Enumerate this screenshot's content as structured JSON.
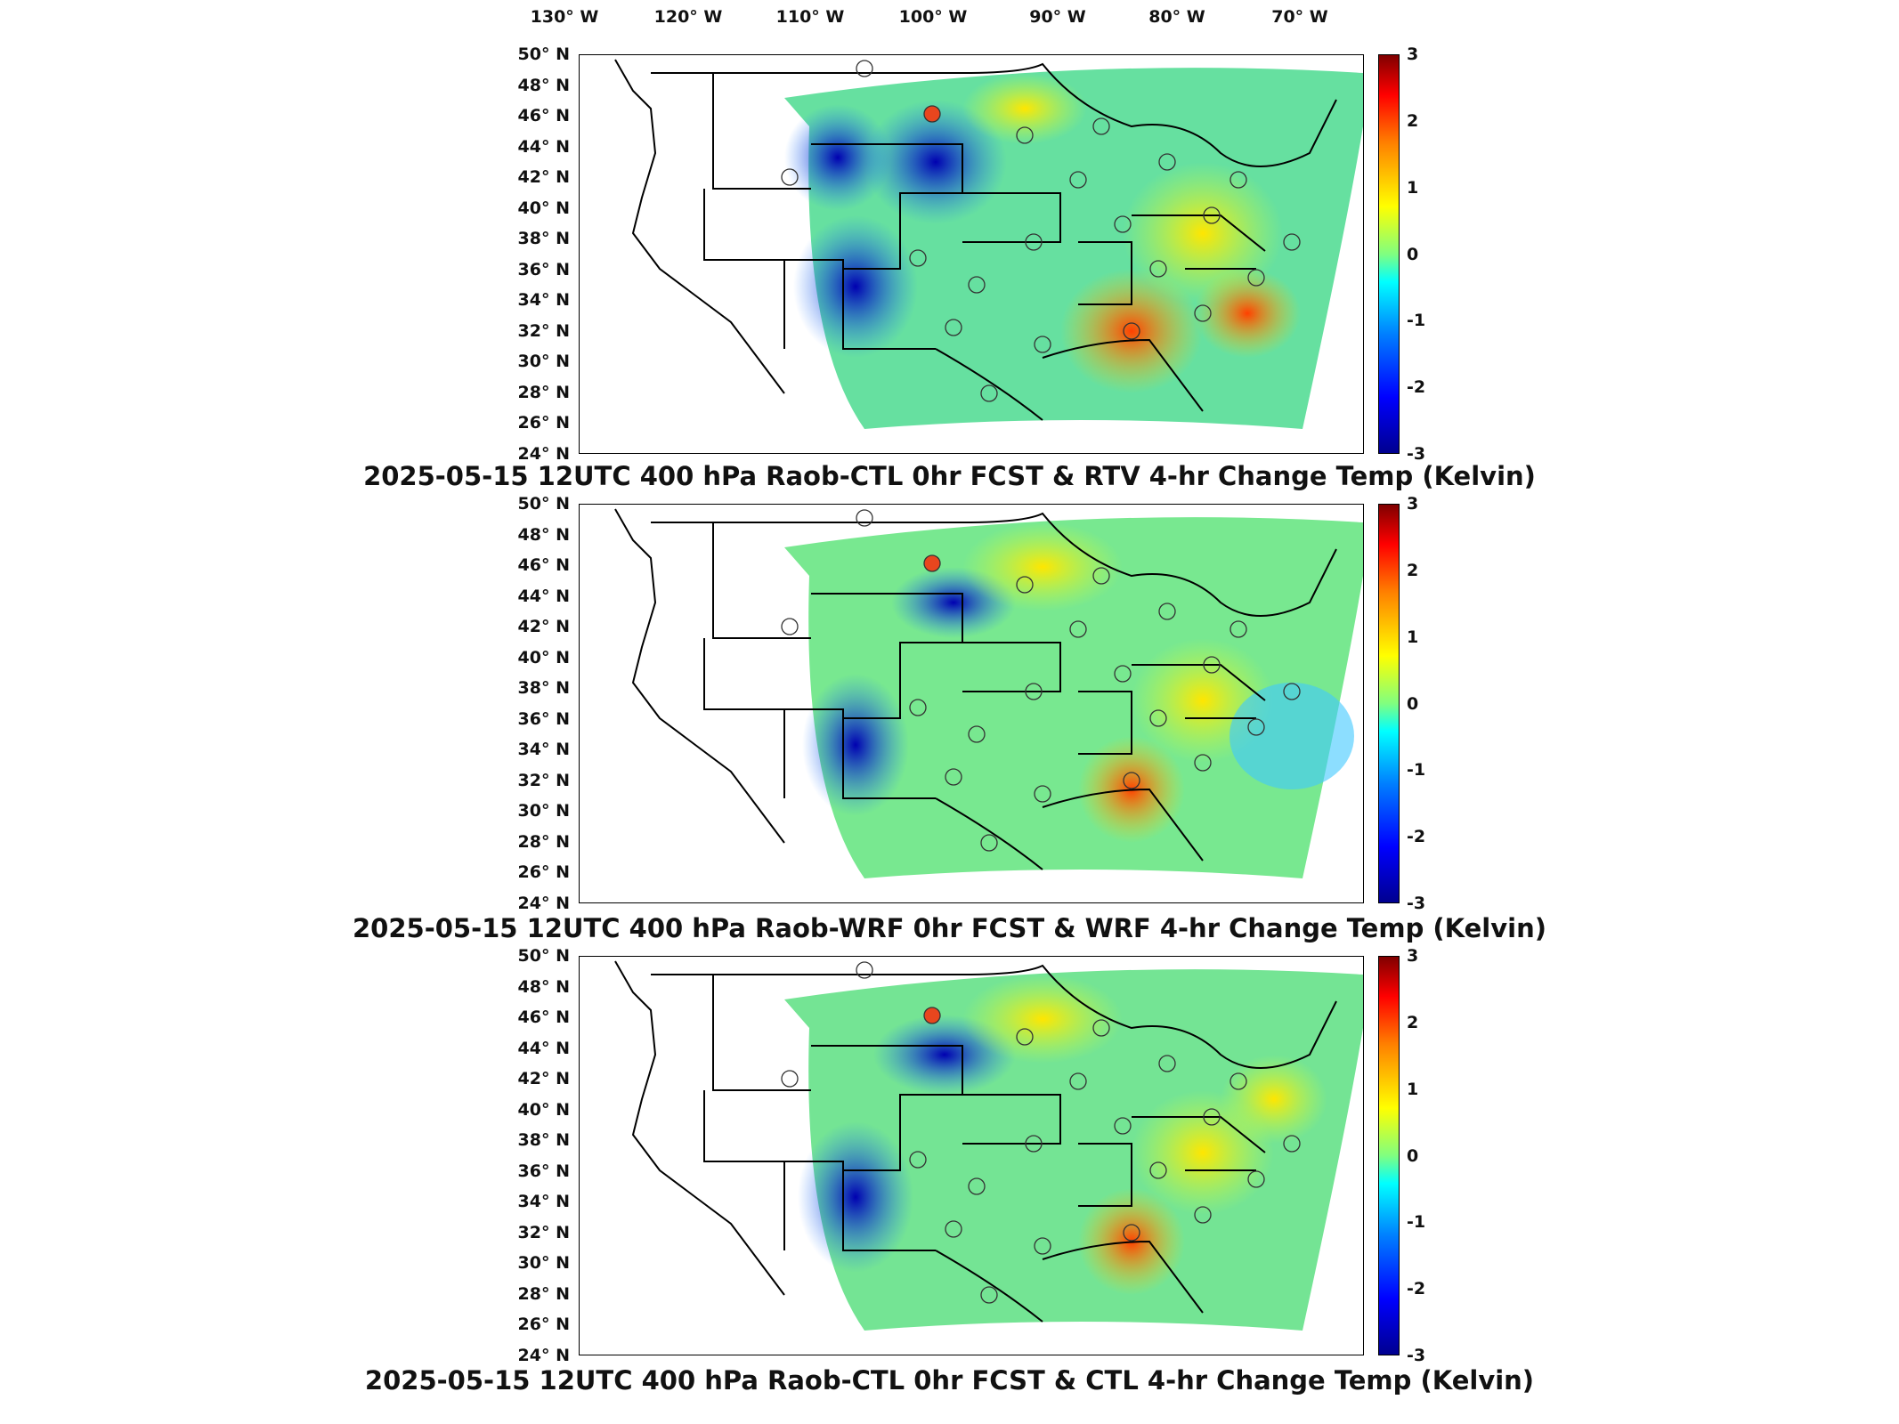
{
  "lon_labels": [
    "130° W",
    "120° W",
    "110° W",
    "100° W",
    "90° W",
    "80° W",
    "70° W"
  ],
  "lat_labels": [
    "50° N",
    "48° N",
    "46° N",
    "44° N",
    "42° N",
    "40° N",
    "38° N",
    "36° N",
    "34° N",
    "32° N",
    "30° N",
    "28° N",
    "26° N",
    "24° N"
  ],
  "colorbar": {
    "ticks": [
      "3",
      "2",
      "1",
      "0",
      "-1",
      "-2",
      "-3"
    ],
    "range": [
      -3,
      3
    ],
    "colormap": "jet"
  },
  "panels": [
    {
      "title": "2025-05-15 12UTC 400 hPa Raob-CTL 0hr FCST & RTV 4-hr Change Temp (Kelvin)",
      "highlight_station_color": "#e8461e"
    },
    {
      "title": "2025-05-15 12UTC 400 hPa Raob-WRF 0hr FCST & WRF 4-hr Change Temp (Kelvin)",
      "highlight_station_color": "#e8461e"
    },
    {
      "title": "2025-05-15 12UTC 400 hPa Raob-CTL 0hr FCST & CTL 4-hr Change Temp (Kelvin)",
      "highlight_station_color": "#e8461e"
    }
  ]
}
